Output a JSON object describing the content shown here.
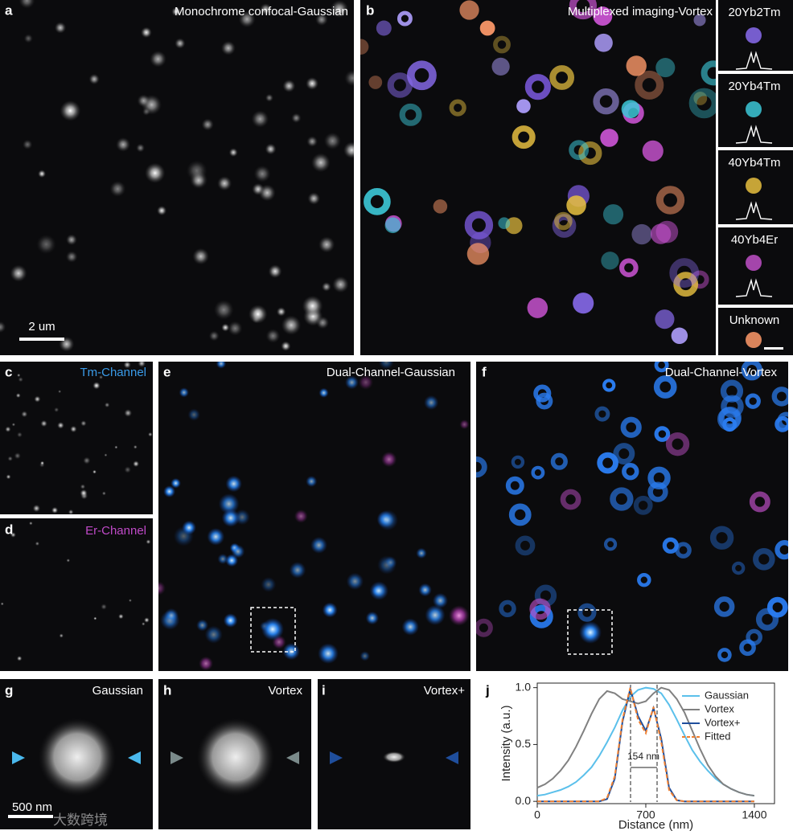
{
  "panels": {
    "a": {
      "letter": "a",
      "title": "Monochrome confocal-Gaussian",
      "scale_bar": "2 um"
    },
    "b": {
      "letter": "b",
      "title": "Multiplexed imaging-Vortex",
      "side_labels": [
        "20Yb2Tm",
        "20Yb4Tm",
        "40Yb4Tm",
        "40Yb4Er",
        "Unknown"
      ]
    },
    "c": {
      "letter": "c",
      "title": "Tm-Channel"
    },
    "d": {
      "letter": "d",
      "title": "Er-Channel"
    },
    "e": {
      "letter": "e",
      "title": "Dual-Channel-Gaussian"
    },
    "f": {
      "letter": "f",
      "title": "Dual-Channel-Vortex"
    },
    "g": {
      "letter": "g",
      "title": "Gaussian",
      "scale_bar": "500 nm"
    },
    "h": {
      "letter": "h",
      "title": "Vortex"
    },
    "i": {
      "letter": "i",
      "title": "Vortex+"
    },
    "j": {
      "letter": "j",
      "annotation": "154 nm"
    },
    "watermark": "大数跨境"
  },
  "chart_data": {
    "type": "line",
    "x_label": "Distance (nm)",
    "y_label": "Intensity (a.u.)",
    "x": [
      0,
      50,
      100,
      150,
      200,
      250,
      300,
      350,
      400,
      450,
      500,
      550,
      600,
      650,
      700,
      750,
      800,
      850,
      900,
      950,
      1000,
      1050,
      1100,
      1150,
      1200,
      1250,
      1300,
      1350,
      1400
    ],
    "series": [
      {
        "name": "Gaussian",
        "color": "#5bc0eb",
        "dashed": false,
        "values": [
          0.05,
          0.06,
          0.08,
          0.1,
          0.13,
          0.17,
          0.23,
          0.3,
          0.4,
          0.52,
          0.65,
          0.8,
          0.92,
          0.98,
          1.0,
          0.99,
          0.95,
          0.85,
          0.72,
          0.58,
          0.45,
          0.35,
          0.27,
          0.2,
          0.15,
          0.11,
          0.08,
          0.06,
          0.05
        ]
      },
      {
        "name": "Vortex",
        "color": "#808080",
        "dashed": false,
        "values": [
          0.12,
          0.15,
          0.2,
          0.27,
          0.36,
          0.48,
          0.62,
          0.77,
          0.9,
          0.97,
          0.95,
          0.9,
          0.88,
          0.86,
          0.88,
          0.95,
          1.0,
          0.98,
          0.9,
          0.78,
          0.62,
          0.46,
          0.32,
          0.22,
          0.15,
          0.11,
          0.08,
          0.06,
          0.05
        ]
      },
      {
        "name": "Vortex+",
        "color": "#1f4e9c",
        "dashed": false,
        "values": [
          0,
          0,
          0,
          0,
          0,
          0,
          0,
          0,
          0,
          0.02,
          0.2,
          0.7,
          0.99,
          0.75,
          0.62,
          0.82,
          0.55,
          0.12,
          0.01,
          0,
          0,
          0,
          0,
          0,
          0,
          0,
          0,
          0,
          0
        ]
      },
      {
        "name": "Fitted",
        "color": "#f08030",
        "dashed": true,
        "values": [
          0,
          0,
          0,
          0,
          0,
          0,
          0,
          0,
          0,
          0.03,
          0.22,
          0.72,
          1.0,
          0.72,
          0.6,
          0.83,
          0.52,
          0.1,
          0.01,
          0,
          0,
          0,
          0,
          0,
          0,
          0,
          0,
          0,
          0
        ]
      }
    ],
    "xlim": [
      0,
      1530
    ],
    "ylim": [
      -0.02,
      1.04
    ],
    "xticks": [
      0,
      700,
      1400
    ],
    "yticks": [
      {
        "value": 0,
        "label": "0.0"
      },
      {
        "value": 0.5,
        "label": "0.5"
      },
      {
        "value": 1,
        "label": "1.0"
      }
    ],
    "legend": "upper right"
  }
}
